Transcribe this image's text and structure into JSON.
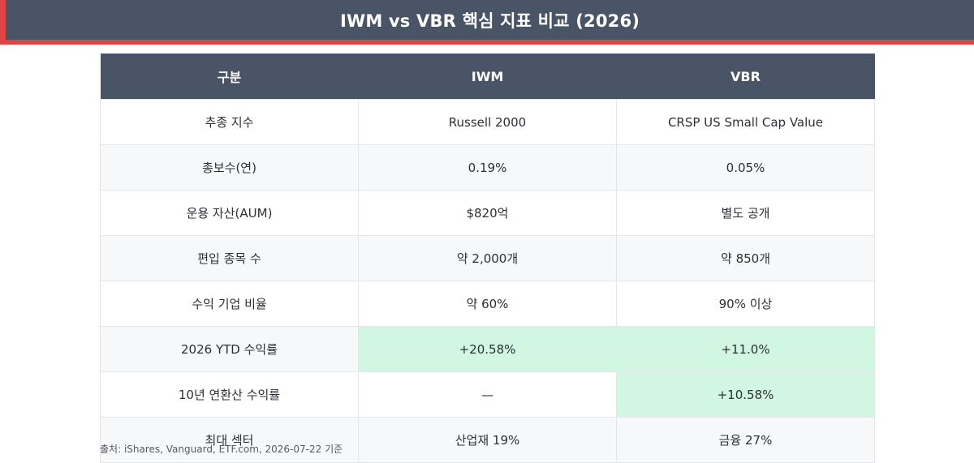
{
  "header": {
    "title": "IWM vs VBR 핵심 지표 비교 (2026)",
    "accent_color": "#e04343",
    "bg_color": "#4a5467"
  },
  "table": {
    "columns": [
      "구분",
      "IWM",
      "VBR"
    ],
    "rows": [
      {
        "label": "추종 지수",
        "iwm": "Russell 2000",
        "vbr": "CRSP US Small Cap Value"
      },
      {
        "label": "총보수(연)",
        "iwm": "0.19%",
        "vbr": "0.05%"
      },
      {
        "label": "운용 자산(AUM)",
        "iwm": "$820억",
        "vbr": "별도 공개"
      },
      {
        "label": "편입 종목 수",
        "iwm": "약 2,000개",
        "vbr": "약 850개"
      },
      {
        "label": "수익 기업 비율",
        "iwm": "약 60%",
        "vbr": "90% 이상"
      },
      {
        "label": "2026 YTD 수익률",
        "iwm": "+20.58%",
        "vbr": "+11.0%"
      },
      {
        "label": "10년 연환산 수익률",
        "iwm": "—",
        "vbr": "+10.58%"
      },
      {
        "label": "최대 섹터",
        "iwm": "산업재 19%",
        "vbr": "금융 27%"
      }
    ],
    "highlight_color": "#d1f7e2"
  },
  "footer": {
    "source": "출처: iShares, Vanguard, ETF.com, 2026-07-22 기준"
  }
}
